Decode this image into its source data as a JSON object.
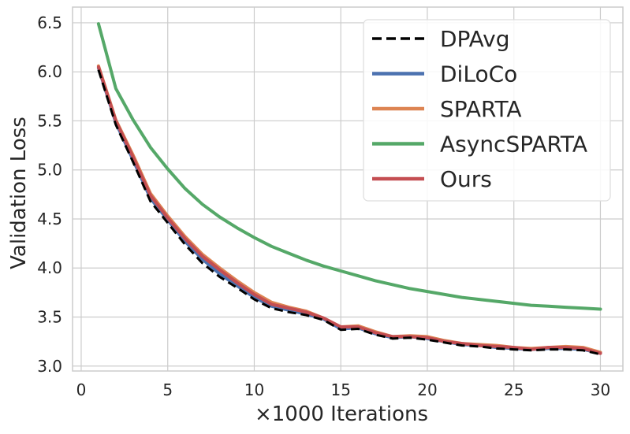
{
  "chart_data": {
    "type": "line",
    "title": "",
    "xlabel": "×1000 Iterations",
    "ylabel": "Validation Loss",
    "xlim": [
      -0.5,
      31.3
    ],
    "ylim": [
      2.95,
      6.66
    ],
    "xticks": [
      0,
      5,
      10,
      15,
      20,
      25,
      30
    ],
    "yticks": [
      3.0,
      3.5,
      4.0,
      4.5,
      5.0,
      5.5,
      6.0,
      6.5
    ],
    "xtick_labels": [
      "0",
      "5",
      "10",
      "15",
      "20",
      "25",
      "30"
    ],
    "ytick_labels": [
      "3.0",
      "3.5",
      "4.0",
      "4.5",
      "5.0",
      "5.5",
      "6.0",
      "6.5"
    ],
    "grid": true,
    "legend_position": "top-right",
    "x": [
      1,
      2,
      3,
      4,
      5,
      6,
      7,
      8,
      9,
      10,
      11,
      12,
      13,
      14,
      15,
      16,
      17,
      18,
      19,
      20,
      21,
      22,
      23,
      24,
      25,
      26,
      27,
      28,
      29,
      30
    ],
    "series": [
      {
        "name": "DPAvg",
        "color": "#000000",
        "style": "dashed",
        "values": [
          6.02,
          5.46,
          5.08,
          4.68,
          4.46,
          4.24,
          4.05,
          3.91,
          3.8,
          3.68,
          3.59,
          3.55,
          3.52,
          3.47,
          3.37,
          3.38,
          3.32,
          3.28,
          3.29,
          3.27,
          3.24,
          3.21,
          3.2,
          3.18,
          3.17,
          3.16,
          3.17,
          3.17,
          3.16,
          3.12
        ]
      },
      {
        "name": "DiLoCo",
        "color": "#4c72b0",
        "style": "solid",
        "values": [
          6.04,
          5.48,
          5.1,
          4.71,
          4.49,
          4.27,
          4.09,
          3.94,
          3.82,
          3.7,
          3.61,
          3.57,
          3.53,
          3.48,
          3.38,
          3.39,
          3.33,
          3.29,
          3.3,
          3.28,
          3.25,
          3.22,
          3.21,
          3.19,
          3.18,
          3.17,
          3.18,
          3.18,
          3.17,
          3.13
        ]
      },
      {
        "name": "SPARTA",
        "color": "#dd8452",
        "style": "solid",
        "values": [
          6.06,
          5.51,
          5.15,
          4.76,
          4.53,
          4.32,
          4.14,
          4.0,
          3.87,
          3.75,
          3.65,
          3.6,
          3.56,
          3.49,
          3.4,
          3.41,
          3.35,
          3.3,
          3.31,
          3.3,
          3.26,
          3.23,
          3.22,
          3.21,
          3.19,
          3.18,
          3.19,
          3.2,
          3.19,
          3.14
        ]
      },
      {
        "name": "AsyncSPARTA",
        "color": "#55a868",
        "style": "solid",
        "values": [
          6.49,
          5.83,
          5.51,
          5.23,
          5.01,
          4.81,
          4.65,
          4.52,
          4.41,
          4.31,
          4.22,
          4.15,
          4.08,
          4.02,
          3.97,
          3.92,
          3.87,
          3.83,
          3.79,
          3.76,
          3.73,
          3.7,
          3.68,
          3.66,
          3.64,
          3.62,
          3.61,
          3.6,
          3.59,
          3.58
        ]
      },
      {
        "name": "Ours",
        "color": "#c44e52",
        "style": "solid",
        "values": [
          6.05,
          5.5,
          5.13,
          4.74,
          4.51,
          4.3,
          4.12,
          3.98,
          3.85,
          3.73,
          3.63,
          3.59,
          3.55,
          3.49,
          3.4,
          3.4,
          3.34,
          3.3,
          3.3,
          3.29,
          3.25,
          3.23,
          3.21,
          3.2,
          3.19,
          3.17,
          3.19,
          3.19,
          3.18,
          3.13
        ]
      }
    ]
  }
}
